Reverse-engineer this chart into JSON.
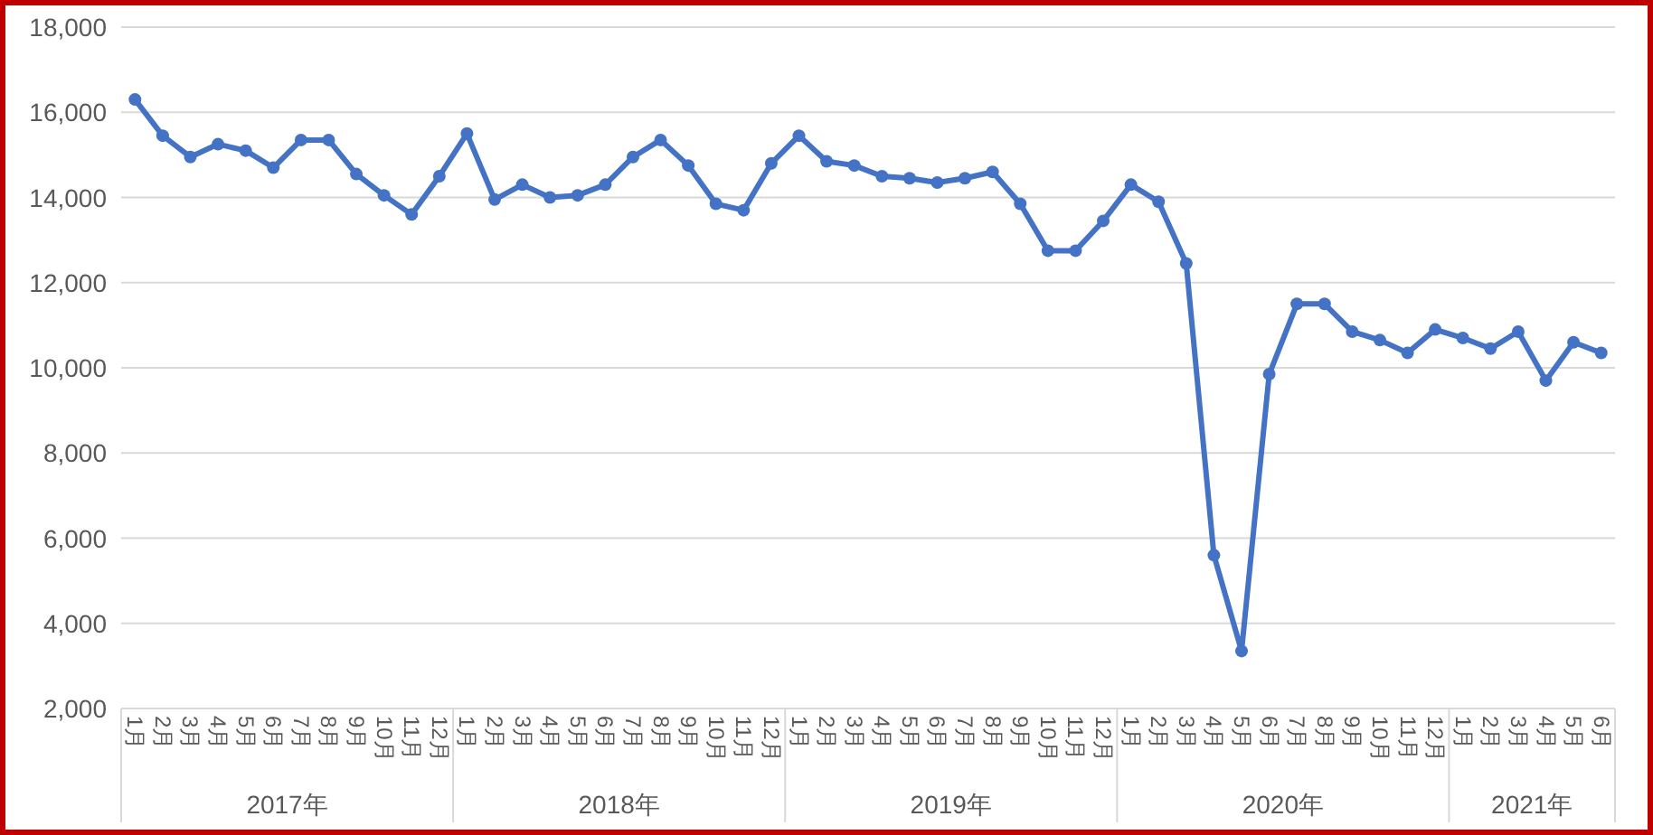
{
  "chart_data": {
    "type": "line",
    "categories": [
      "1月",
      "2月",
      "3月",
      "4月",
      "5月",
      "6月",
      "7月",
      "8月",
      "9月",
      "10月",
      "11月",
      "12月",
      "1月",
      "2月",
      "3月",
      "4月",
      "5月",
      "6月",
      "7月",
      "8月",
      "9月",
      "10月",
      "11月",
      "12月",
      "1月",
      "2月",
      "3月",
      "4月",
      "5月",
      "6月",
      "7月",
      "8月",
      "9月",
      "10月",
      "11月",
      "12月",
      "1月",
      "2月",
      "3月",
      "4月",
      "5月",
      "6月",
      "7月",
      "8月",
      "9月",
      "10月",
      "11月",
      "12月",
      "1月",
      "2月",
      "3月",
      "4月",
      "5月",
      "6月"
    ],
    "series": [
      {
        "color": "#4472c4",
        "values": [
          16300,
          15450,
          14950,
          15250,
          15100,
          14700,
          15350,
          15350,
          14550,
          14050,
          13600,
          14500,
          15500,
          13950,
          14300,
          14000,
          14050,
          14300,
          14950,
          15350,
          14750,
          13850,
          13700,
          14800,
          15450,
          14850,
          14750,
          14500,
          14450,
          14350,
          14450,
          14600,
          13850,
          12750,
          12750,
          13450,
          14300,
          13900,
          12450,
          5600,
          3350,
          9850,
          11500,
          11500,
          10850,
          10650,
          10350,
          10900,
          10700,
          10450,
          10850,
          9700,
          10600,
          10350
        ]
      }
    ],
    "ylim": [
      2000,
      18000
    ],
    "yticks": [
      {
        "value": 2000,
        "label": "2,000"
      },
      {
        "value": 4000,
        "label": "4,000"
      },
      {
        "value": 6000,
        "label": "6,000"
      },
      {
        "value": 8000,
        "label": "8,000"
      },
      {
        "value": 10000,
        "label": "10,000"
      },
      {
        "value": 12000,
        "label": "12,000"
      },
      {
        "value": 14000,
        "label": "14,000"
      },
      {
        "value": 16000,
        "label": "16,000"
      },
      {
        "value": 18000,
        "label": "18,000"
      }
    ],
    "grid": "y",
    "marker": "circle",
    "line_style": "solid",
    "annotations": [
      "2017年",
      "2018年",
      "2019年",
      "2020年",
      "2021年"
    ]
  }
}
